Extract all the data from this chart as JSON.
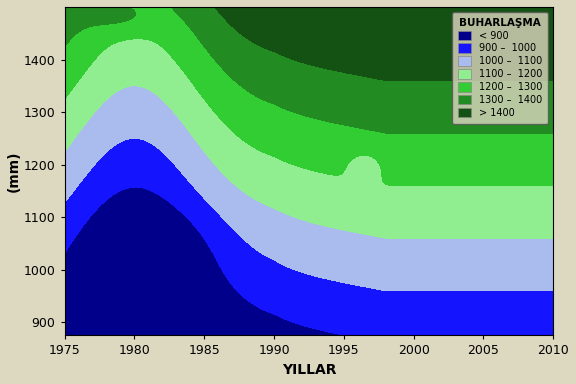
{
  "title": "",
  "xlabel": "YILLAR",
  "ylabel": "(mm)",
  "xlim": [
    1975,
    2010
  ],
  "ylim": [
    875,
    1500
  ],
  "yticks": [
    900,
    1000,
    1100,
    1200,
    1300,
    1400
  ],
  "xticks": [
    1975,
    1980,
    1985,
    1990,
    1995,
    2000,
    2005,
    2010
  ],
  "background_color": "#ddd8c0",
  "legend_title": "BUHARLAŞMA",
  "legend_labels": [
    "< 900",
    "900 –  1000",
    "1000 –  1100",
    "1100 –  1200",
    "1200 –  1300",
    "1300 –  1400",
    "> 1400"
  ],
  "legend_colors": [
    "#00008B",
    "#1414FF",
    "#AABBEE",
    "#90EE90",
    "#32CD32",
    "#228B22",
    "#145214"
  ],
  "contour_levels": [
    800,
    900,
    1000,
    1100,
    1200,
    1300,
    1400,
    1700
  ],
  "contour_colors": [
    "#00008B",
    "#1414FF",
    "#AABBEE",
    "#90EE90",
    "#32CD32",
    "#228B22",
    "#145214"
  ]
}
